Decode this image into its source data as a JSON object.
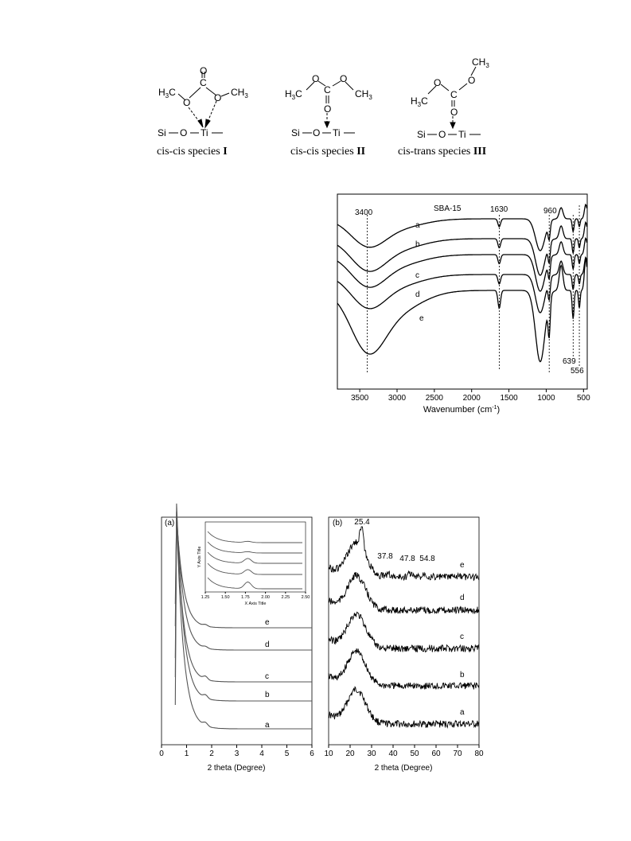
{
  "structures": {
    "species": [
      {
        "caption": "cis-cis  species ",
        "roman": "I"
      },
      {
        "caption": "cis-cis  species ",
        "roman": "II"
      },
      {
        "caption": "cis-trans species ",
        "roman": "III"
      }
    ],
    "atoms": {
      "c": "C",
      "o": "O",
      "si": "Si",
      "ti": "Ti",
      "ch3": "CH",
      "h3c": "H",
      "three": "3"
    }
  },
  "chart_data": [
    {
      "type": "line",
      "title": "SBA-15",
      "xlabel": "Wavenumber (cm",
      "xlabel_sup": "-1",
      "xlabel_end": ")",
      "xlim": [
        3800,
        450
      ],
      "xticks": [
        3500,
        3000,
        2500,
        2000,
        1500,
        1000,
        500
      ],
      "x_reversed": true,
      "series": [
        {
          "name": "a"
        },
        {
          "name": "b"
        },
        {
          "name": "c"
        },
        {
          "name": "d"
        },
        {
          "name": "e"
        }
      ],
      "annotations": [
        {
          "label": "3400",
          "x": 3400
        },
        {
          "label": "1630",
          "x": 1630
        },
        {
          "label": "960",
          "x": 960
        },
        {
          "label": "639",
          "x": 639
        },
        {
          "label": "556",
          "x": 556
        }
      ]
    },
    {
      "type": "line",
      "panel": "(a)",
      "xlabel": "2 theta (Degree)",
      "xlim": [
        0,
        6
      ],
      "xticks": [
        0,
        1,
        2,
        3,
        4,
        5,
        6
      ],
      "series": [
        {
          "name": "a"
        },
        {
          "name": "b"
        },
        {
          "name": "c"
        },
        {
          "name": "d"
        },
        {
          "name": "e"
        }
      ],
      "inset": {
        "xlabel": "X Axis Title",
        "ylabel": "Y Axis Title",
        "xlim": [
          1.25,
          2.5
        ],
        "xticks": [
          "1.25",
          "1.50",
          "1.75",
          "2.00",
          "2.25",
          "2.50"
        ]
      }
    },
    {
      "type": "line",
      "panel": "(b)",
      "xlabel": "2 theta (Degree)",
      "xlim": [
        10,
        80
      ],
      "xticks": [
        10,
        20,
        30,
        40,
        50,
        60,
        70,
        80
      ],
      "series": [
        {
          "name": "a"
        },
        {
          "name": "b"
        },
        {
          "name": "c"
        },
        {
          "name": "d"
        },
        {
          "name": "e"
        }
      ],
      "annotations": [
        {
          "label": "25.4",
          "x": 25.4
        },
        {
          "label": "37.8",
          "x": 37.8
        },
        {
          "label": "47.8",
          "x": 47.8
        },
        {
          "label": "54.8",
          "x": 54.8
        }
      ]
    }
  ]
}
